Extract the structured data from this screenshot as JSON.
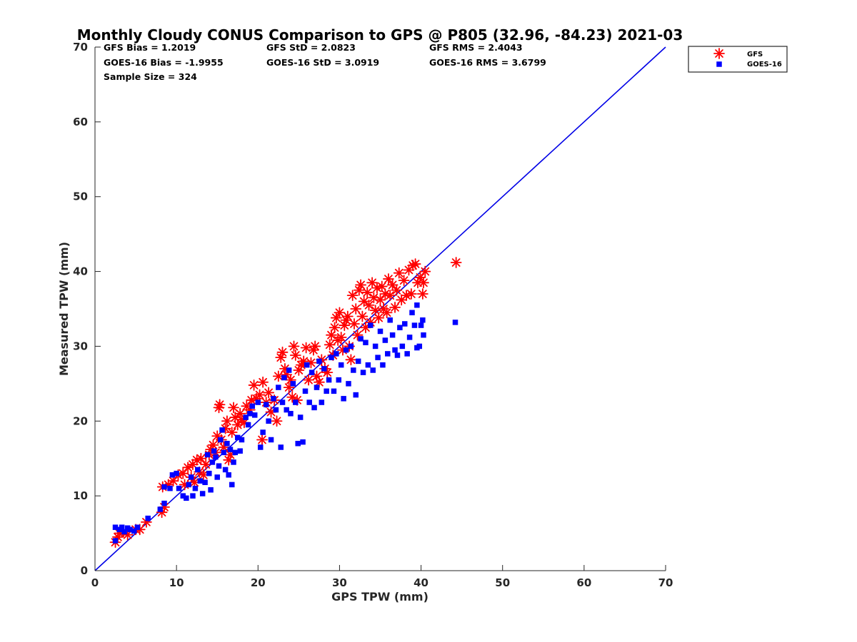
{
  "chart_data": {
    "type": "scatter",
    "title": "Monthly Cloudy CONUS Comparison to GPS @ P805 (32.96, -84.23) 2021-03",
    "xlabel": "GPS TPW (mm)",
    "ylabel": "Measured TPW (mm)",
    "xlim": [
      0,
      70
    ],
    "ylim": [
      0,
      70
    ],
    "xticks": [
      "0",
      "10",
      "20",
      "30",
      "40",
      "50",
      "60",
      "70"
    ],
    "yticks": [
      "0",
      "10",
      "20",
      "30",
      "40",
      "50",
      "60",
      "70"
    ],
    "grid": false,
    "legend_position": "outside top-right",
    "stats": [
      [
        "GFS Bias = 1.2019",
        "GFS StD = 2.0823",
        "GFS RMS = 2.4043"
      ],
      [
        "GOES-16 Bias = -1.9955",
        "GOES-16 StD = 3.0919",
        "GOES-16 RMS = 3.6799"
      ],
      [
        "Sample Size = 324"
      ]
    ],
    "reference_line": {
      "x": [
        0,
        70
      ],
      "y": [
        0,
        70
      ],
      "color": "#0000e6"
    },
    "series": [
      {
        "name": "GFS",
        "marker": "asterisk",
        "color": "#ff0000",
        "points": [
          [
            2.5,
            3.8
          ],
          [
            2.8,
            4.5
          ],
          [
            3.0,
            5.0
          ],
          [
            3.5,
            5.2
          ],
          [
            4.0,
            4.8
          ],
          [
            5.0,
            5.5
          ],
          [
            5.5,
            5.5
          ],
          [
            6.3,
            6.5
          ],
          [
            8.2,
            7.8
          ],
          [
            8.5,
            8.5
          ],
          [
            8.3,
            11.2
          ],
          [
            9.0,
            11.5
          ],
          [
            9.6,
            12.0
          ],
          [
            10.2,
            12.8
          ],
          [
            10.8,
            13.0
          ],
          [
            11.0,
            11.5
          ],
          [
            11.4,
            13.8
          ],
          [
            11.8,
            12.5
          ],
          [
            12.0,
            14.2
          ],
          [
            12.2,
            11.8
          ],
          [
            12.5,
            14.8
          ],
          [
            12.8,
            13.2
          ],
          [
            13.0,
            15.0
          ],
          [
            13.3,
            12.8
          ],
          [
            13.6,
            14.2
          ],
          [
            14.0,
            15.5
          ],
          [
            14.2,
            16.2
          ],
          [
            14.5,
            16.8
          ],
          [
            14.8,
            15.8
          ],
          [
            15.0,
            18.0
          ],
          [
            15.2,
            21.8
          ],
          [
            15.3,
            22.2
          ],
          [
            15.5,
            17.5
          ],
          [
            15.8,
            16.5
          ],
          [
            16.0,
            19.0
          ],
          [
            16.2,
            20.0
          ],
          [
            16.4,
            14.8
          ],
          [
            16.6,
            15.5
          ],
          [
            16.8,
            18.5
          ],
          [
            17.0,
            21.8
          ],
          [
            17.2,
            20.5
          ],
          [
            17.5,
            19.5
          ],
          [
            17.8,
            21.0
          ],
          [
            18.0,
            20.2
          ],
          [
            18.3,
            19.8
          ],
          [
            18.6,
            22.0
          ],
          [
            19.0,
            21.5
          ],
          [
            19.2,
            22.8
          ],
          [
            19.5,
            24.8
          ],
          [
            19.8,
            23.0
          ],
          [
            20.2,
            23.5
          ],
          [
            20.5,
            17.5
          ],
          [
            20.6,
            25.2
          ],
          [
            21.0,
            22.5
          ],
          [
            21.3,
            23.8
          ],
          [
            21.6,
            21.2
          ],
          [
            22.0,
            22.8
          ],
          [
            22.3,
            20.0
          ],
          [
            22.5,
            26.0
          ],
          [
            22.8,
            28.5
          ],
          [
            23.0,
            29.2
          ],
          [
            23.3,
            27.0
          ],
          [
            23.5,
            26.2
          ],
          [
            23.8,
            24.5
          ],
          [
            24.0,
            25.5
          ],
          [
            24.2,
            23.2
          ],
          [
            24.4,
            30.0
          ],
          [
            24.6,
            28.8
          ],
          [
            24.8,
            22.8
          ],
          [
            25.0,
            26.8
          ],
          [
            25.3,
            27.5
          ],
          [
            25.6,
            28.0
          ],
          [
            25.9,
            29.8
          ],
          [
            26.2,
            25.5
          ],
          [
            26.5,
            27.8
          ],
          [
            26.8,
            29.5
          ],
          [
            27.0,
            30.0
          ],
          [
            27.2,
            26.0
          ],
          [
            27.5,
            25.2
          ],
          [
            27.8,
            28.2
          ],
          [
            28.2,
            27.0
          ],
          [
            28.5,
            26.5
          ],
          [
            28.8,
            30.2
          ],
          [
            29.0,
            31.5
          ],
          [
            29.2,
            28.8
          ],
          [
            29.4,
            32.5
          ],
          [
            29.6,
            33.8
          ],
          [
            29.8,
            30.8
          ],
          [
            30.0,
            34.5
          ],
          [
            30.2,
            31.2
          ],
          [
            30.4,
            29.5
          ],
          [
            30.6,
            32.8
          ],
          [
            30.8,
            33.5
          ],
          [
            31.0,
            34.0
          ],
          [
            31.2,
            30.0
          ],
          [
            31.4,
            28.2
          ],
          [
            31.6,
            36.8
          ],
          [
            31.8,
            33.0
          ],
          [
            32.0,
            35.0
          ],
          [
            32.2,
            31.5
          ],
          [
            32.4,
            37.5
          ],
          [
            32.6,
            38.2
          ],
          [
            32.8,
            34.0
          ],
          [
            33.0,
            36.0
          ],
          [
            33.2,
            32.5
          ],
          [
            33.4,
            37.2
          ],
          [
            33.6,
            35.5
          ],
          [
            33.8,
            33.2
          ],
          [
            34.0,
            38.5
          ],
          [
            34.2,
            36.5
          ],
          [
            34.4,
            34.8
          ],
          [
            34.6,
            37.8
          ],
          [
            34.8,
            33.8
          ],
          [
            35.0,
            36.2
          ],
          [
            35.2,
            38.0
          ],
          [
            35.4,
            35.0
          ],
          [
            35.6,
            37.0
          ],
          [
            35.8,
            34.5
          ],
          [
            36.0,
            39.0
          ],
          [
            36.2,
            36.8
          ],
          [
            36.5,
            38.2
          ],
          [
            36.8,
            35.2
          ],
          [
            37.0,
            37.5
          ],
          [
            37.3,
            39.8
          ],
          [
            37.6,
            36.2
          ],
          [
            37.9,
            38.8
          ],
          [
            38.2,
            36.8
          ],
          [
            38.5,
            40.2
          ],
          [
            38.8,
            37.0
          ],
          [
            39.0,
            40.8
          ],
          [
            39.3,
            41.0
          ],
          [
            39.6,
            38.5
          ],
          [
            39.9,
            39.2
          ],
          [
            40.2,
            37.0
          ],
          [
            40.5,
            40.0
          ],
          [
            40.3,
            38.5
          ],
          [
            44.3,
            41.2
          ]
        ]
      },
      {
        "name": "GOES-16",
        "marker": "square",
        "color": "#0000ff",
        "points": [
          [
            2.5,
            5.8
          ],
          [
            2.5,
            4.0
          ],
          [
            3.0,
            5.5
          ],
          [
            3.3,
            5.8
          ],
          [
            3.6,
            5.2
          ],
          [
            4.0,
            5.7
          ],
          [
            4.3,
            5.5
          ],
          [
            4.8,
            5.3
          ],
          [
            5.2,
            5.8
          ],
          [
            6.5,
            7.0
          ],
          [
            8.0,
            8.2
          ],
          [
            8.5,
            9.0
          ],
          [
            8.5,
            11.2
          ],
          [
            9.2,
            11.0
          ],
          [
            9.5,
            12.8
          ],
          [
            10.0,
            13.0
          ],
          [
            10.3,
            11.0
          ],
          [
            10.8,
            10.0
          ],
          [
            11.2,
            9.7
          ],
          [
            11.5,
            11.5
          ],
          [
            11.8,
            12.5
          ],
          [
            12.0,
            10.0
          ],
          [
            12.3,
            11.0
          ],
          [
            12.6,
            13.5
          ],
          [
            12.9,
            12.0
          ],
          [
            13.2,
            10.3
          ],
          [
            13.5,
            11.8
          ],
          [
            13.8,
            15.5
          ],
          [
            14.0,
            13.0
          ],
          [
            14.2,
            10.8
          ],
          [
            14.4,
            14.5
          ],
          [
            14.6,
            16.0
          ],
          [
            14.8,
            15.2
          ],
          [
            15.0,
            12.5
          ],
          [
            15.2,
            14.0
          ],
          [
            15.4,
            17.5
          ],
          [
            15.6,
            18.8
          ],
          [
            15.8,
            15.8
          ],
          [
            16.0,
            13.5
          ],
          [
            16.2,
            17.0
          ],
          [
            16.4,
            12.8
          ],
          [
            16.6,
            16.2
          ],
          [
            16.8,
            11.5
          ],
          [
            17.0,
            14.5
          ],
          [
            17.2,
            15.8
          ],
          [
            17.5,
            17.8
          ],
          [
            17.8,
            16.0
          ],
          [
            18.0,
            17.5
          ],
          [
            18.5,
            20.5
          ],
          [
            18.8,
            19.5
          ],
          [
            19.0,
            21.0
          ],
          [
            19.3,
            22.0
          ],
          [
            19.6,
            20.8
          ],
          [
            20.0,
            22.5
          ],
          [
            20.3,
            16.5
          ],
          [
            20.6,
            18.5
          ],
          [
            21.0,
            22.2
          ],
          [
            21.3,
            20.0
          ],
          [
            21.6,
            17.5
          ],
          [
            21.9,
            23.0
          ],
          [
            22.2,
            21.5
          ],
          [
            22.5,
            24.5
          ],
          [
            22.8,
            16.5
          ],
          [
            23.0,
            22.5
          ],
          [
            23.2,
            25.8
          ],
          [
            23.5,
            21.5
          ],
          [
            23.8,
            26.8
          ],
          [
            24.0,
            21.0
          ],
          [
            24.3,
            25.0
          ],
          [
            24.6,
            22.5
          ],
          [
            24.9,
            17.0
          ],
          [
            25.2,
            20.5
          ],
          [
            25.5,
            17.2
          ],
          [
            25.8,
            24.0
          ],
          [
            26.0,
            27.5
          ],
          [
            26.3,
            22.5
          ],
          [
            26.6,
            26.5
          ],
          [
            26.9,
            21.8
          ],
          [
            27.2,
            24.5
          ],
          [
            27.5,
            28.0
          ],
          [
            27.8,
            22.5
          ],
          [
            28.1,
            27.0
          ],
          [
            28.4,
            24.0
          ],
          [
            28.7,
            25.5
          ],
          [
            29.0,
            28.5
          ],
          [
            29.3,
            24.0
          ],
          [
            29.6,
            29.0
          ],
          [
            29.9,
            25.5
          ],
          [
            30.2,
            27.5
          ],
          [
            30.5,
            23.0
          ],
          [
            30.8,
            29.5
          ],
          [
            31.1,
            25.0
          ],
          [
            31.4,
            30.0
          ],
          [
            31.7,
            26.8
          ],
          [
            32.0,
            23.5
          ],
          [
            32.3,
            28.0
          ],
          [
            32.6,
            31.0
          ],
          [
            32.9,
            26.5
          ],
          [
            33.2,
            30.5
          ],
          [
            33.5,
            27.5
          ],
          [
            33.8,
            32.8
          ],
          [
            34.1,
            26.8
          ],
          [
            34.4,
            30.0
          ],
          [
            34.7,
            28.5
          ],
          [
            35.0,
            32.0
          ],
          [
            35.3,
            27.5
          ],
          [
            35.6,
            30.8
          ],
          [
            35.9,
            29.0
          ],
          [
            36.2,
            33.5
          ],
          [
            36.5,
            31.5
          ],
          [
            36.8,
            29.5
          ],
          [
            37.1,
            28.8
          ],
          [
            37.4,
            32.5
          ],
          [
            37.7,
            30.0
          ],
          [
            38.0,
            33.0
          ],
          [
            38.3,
            29.0
          ],
          [
            38.6,
            31.2
          ],
          [
            38.9,
            34.5
          ],
          [
            39.2,
            32.8
          ],
          [
            39.5,
            29.8
          ],
          [
            39.8,
            30.0
          ],
          [
            40.2,
            33.5
          ],
          [
            40.3,
            31.5
          ],
          [
            40.0,
            32.8
          ],
          [
            39.5,
            35.5
          ],
          [
            44.2,
            33.2
          ]
        ]
      }
    ]
  }
}
